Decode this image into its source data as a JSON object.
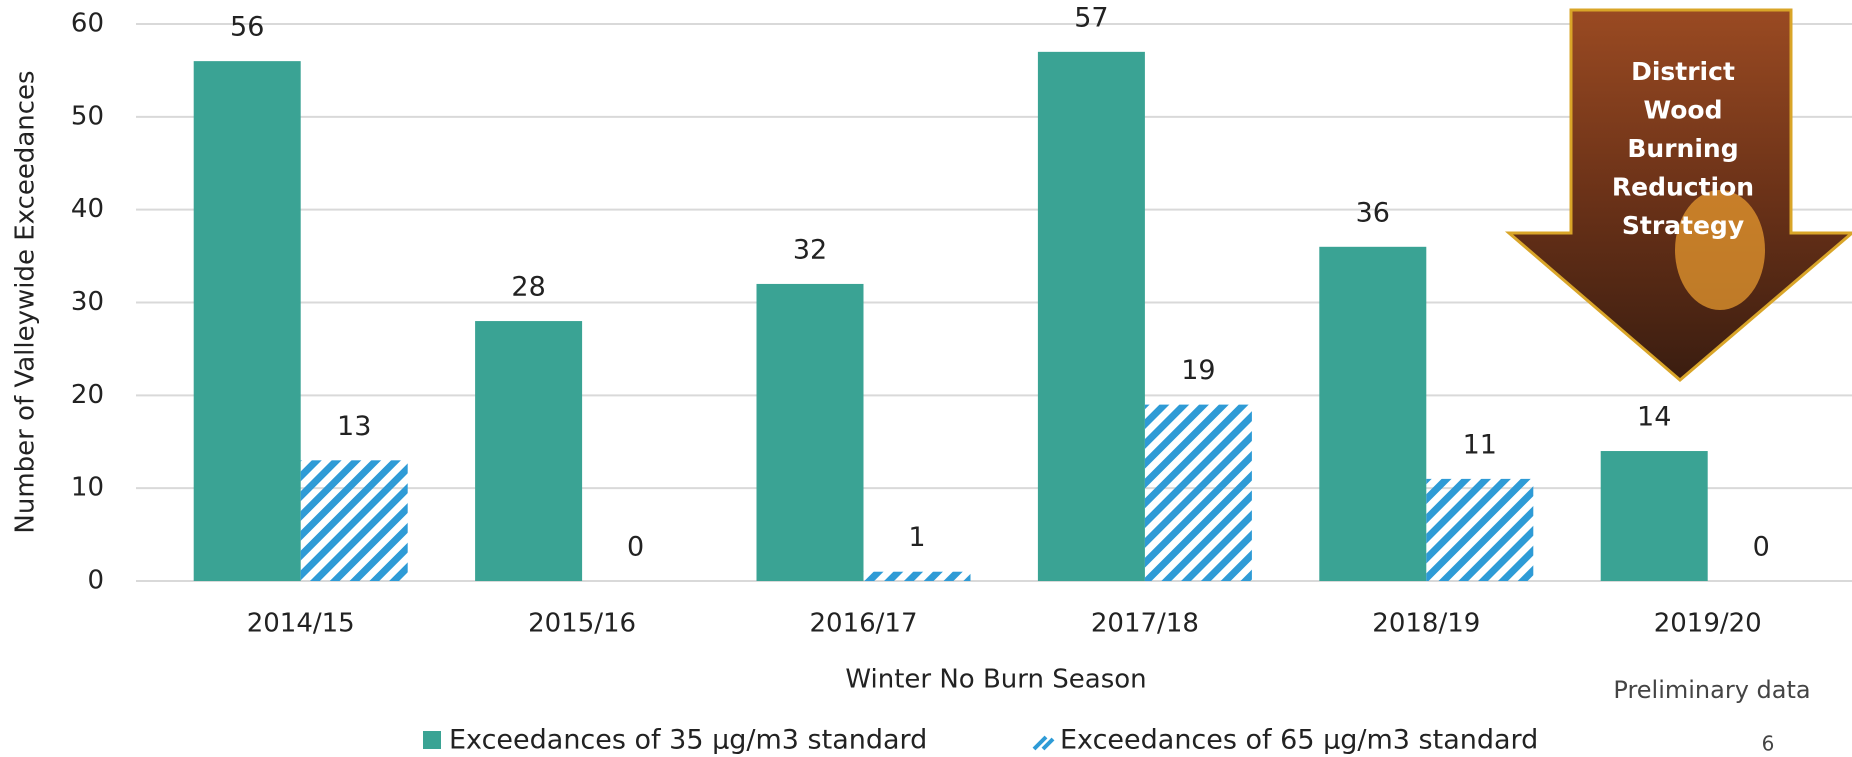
{
  "chart_data": {
    "type": "bar",
    "categories": [
      "2014/15",
      "2015/16",
      "2016/17",
      "2017/18",
      "2018/19",
      "2019/20"
    ],
    "series": [
      {
        "name": "Exceedances of 35 µg/m3 standard",
        "color": "#3aa394",
        "values": [
          56,
          28,
          32,
          57,
          36,
          14
        ]
      },
      {
        "name": "Exceedances of 65 µg/m3 standard",
        "color": "#2e9bd6",
        "hatch": true,
        "values": [
          13,
          0,
          1,
          19,
          11,
          0
        ]
      }
    ],
    "ylim": [
      0,
      60
    ],
    "yticks": [
      0,
      10,
      20,
      30,
      40,
      50,
      60
    ],
    "grid": true,
    "y_label": "Number of Valleywide Exceedances",
    "x_label": "Winter No Burn Season",
    "note": "Preliminary data",
    "callout": [
      "District",
      "Wood",
      "Burning",
      "Reduction",
      "Strategy"
    ],
    "page_number": "6"
  }
}
